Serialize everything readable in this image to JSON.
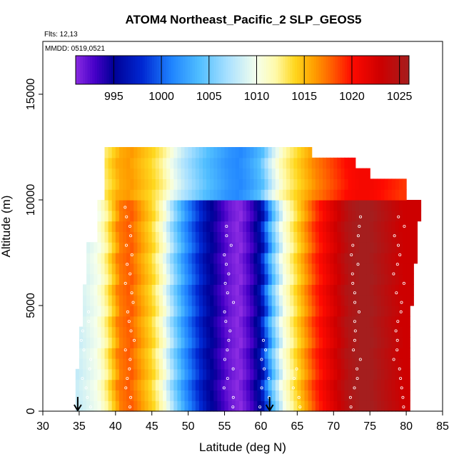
{
  "chart_data": {
    "type": "heatmap",
    "title": "ATOM4 Northeast_Pacific_2 SLP_GEOS5",
    "flights_label": "Flts: 12,13",
    "dates_label": "MMDD: 0519,0521",
    "xlabel": "Latitude (deg N)",
    "ylabel": "Altitude (m)",
    "xlim": [
      30,
      85
    ],
    "ylim": [
      0,
      17500
    ],
    "x_ticks": [
      "30",
      "35",
      "40",
      "45",
      "50",
      "55",
      "60",
      "65",
      "70",
      "75",
      "80",
      "85"
    ],
    "y_ticks": [
      "0",
      "5000",
      "10000",
      "15000"
    ],
    "colorbar": {
      "range": [
        991,
        1026
      ],
      "tick_values": [
        995,
        1000,
        1005,
        1010,
        1015,
        1020,
        1025
      ],
      "tick_labels": [
        "995",
        "1000",
        "1005",
        "1010",
        "1015",
        "1020",
        "1025"
      ]
    },
    "slp_profile_by_latitude": {
      "lat": [
        34.5,
        36,
        37.5,
        39,
        40.5,
        42,
        43.5,
        45,
        46.5,
        48,
        49.5,
        51,
        52.5,
        54,
        55.5,
        57,
        58.5,
        60,
        61.5,
        63,
        64.5,
        66,
        67.5,
        69,
        70.5,
        72,
        73.5,
        75,
        76.5,
        78,
        79.5,
        81
      ],
      "slp_hPa": [
        1008,
        1009,
        1010,
        1013,
        1017,
        1018,
        1016,
        1014,
        1011,
        1006,
        1002,
        999,
        996,
        994,
        992,
        991,
        993,
        996,
        1004,
        1010,
        1013,
        1016,
        1019,
        1021,
        1023,
        1025,
        1026,
        1026,
        1025,
        1024,
        1023,
        1023
      ]
    },
    "flight_markers_lat": [
      34.8,
      61.2
    ]
  }
}
